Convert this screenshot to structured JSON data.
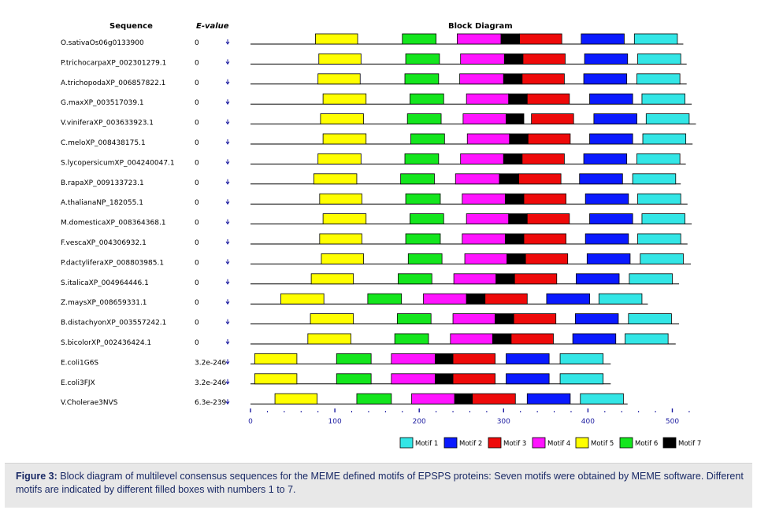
{
  "headers": {
    "sequence": "Sequence",
    "evalue": "E-value",
    "block_diagram": "Block Diagram"
  },
  "axis_ticks": [
    "0",
    "100",
    "200",
    "300",
    "400",
    "500"
  ],
  "motif_colors": {
    "1": "#33e6e6",
    "2": "#0a1aff",
    "3": "#ee0a0a",
    "4": "#ff14ff",
    "5": "#ffff00",
    "6": "#14e61e",
    "7": "#000000"
  },
  "legend": [
    {
      "motif": 1,
      "label": "Motif 1"
    },
    {
      "motif": 2,
      "label": "Motif 2"
    },
    {
      "motif": 3,
      "label": "Motif 3"
    },
    {
      "motif": 4,
      "label": "Motif 4"
    },
    {
      "motif": 5,
      "label": "Motif 5"
    },
    {
      "motif": 6,
      "label": "Motif 6"
    },
    {
      "motif": 7,
      "label": "Motif 7"
    }
  ],
  "rows": [
    {
      "name": "O.sativaOs06g0133900",
      "evalue": "0",
      "length": 513,
      "blocks": [
        [
          5,
          77,
          127
        ],
        [
          6,
          180,
          220
        ],
        [
          4,
          245,
          297
        ],
        [
          7,
          297,
          319
        ],
        [
          3,
          319,
          369
        ],
        [
          2,
          392,
          443
        ],
        [
          1,
          455,
          506
        ]
      ]
    },
    {
      "name": "P.trichocarpaXP_002301279.1",
      "evalue": "0",
      "length": 517,
      "blocks": [
        [
          5,
          81,
          131
        ],
        [
          6,
          184,
          224
        ],
        [
          4,
          249,
          301
        ],
        [
          7,
          301,
          323
        ],
        [
          3,
          323,
          373
        ],
        [
          2,
          396,
          447
        ],
        [
          1,
          459,
          510
        ]
      ]
    },
    {
      "name": "A.trichopodaXP_006857822.1",
      "evalue": "0",
      "length": 517,
      "blocks": [
        [
          5,
          80,
          130
        ],
        [
          6,
          183,
          223
        ],
        [
          4,
          248,
          300
        ],
        [
          7,
          300,
          322
        ],
        [
          3,
          322,
          372
        ],
        [
          2,
          395,
          446
        ],
        [
          1,
          458,
          509
        ]
      ]
    },
    {
      "name": "G.maxXP_003517039.1",
      "evalue": "0",
      "length": 523,
      "blocks": [
        [
          5,
          86,
          137
        ],
        [
          6,
          189,
          229
        ],
        [
          4,
          256,
          306
        ],
        [
          7,
          306,
          328
        ],
        [
          3,
          328,
          378
        ],
        [
          2,
          402,
          453
        ],
        [
          1,
          464,
          515
        ]
      ]
    },
    {
      "name": "V.viniferaXP_003633923.1",
      "evalue": "0",
      "length": 528,
      "blocks": [
        [
          5,
          83,
          134
        ],
        [
          6,
          186,
          226
        ],
        [
          4,
          252,
          303
        ],
        [
          7,
          303,
          324
        ],
        [
          3,
          333,
          383
        ],
        [
          2,
          407,
          458
        ],
        [
          1,
          469,
          520
        ]
      ]
    },
    {
      "name": "C.meloXP_008438175.1",
      "evalue": "0",
      "length": 524,
      "blocks": [
        [
          5,
          86,
          137
        ],
        [
          6,
          190,
          230
        ],
        [
          4,
          257,
          307
        ],
        [
          7,
          307,
          329
        ],
        [
          3,
          329,
          379
        ],
        [
          2,
          402,
          453
        ],
        [
          1,
          465,
          516
        ]
      ]
    },
    {
      "name": "S.lycopersicumXP_004240047.1",
      "evalue": "0",
      "length": 516,
      "blocks": [
        [
          5,
          80,
          131
        ],
        [
          6,
          183,
          223
        ],
        [
          4,
          249,
          300
        ],
        [
          7,
          300,
          322
        ],
        [
          3,
          322,
          372
        ],
        [
          2,
          395,
          446
        ],
        [
          1,
          458,
          509
        ]
      ]
    },
    {
      "name": "B.rapaXP_009133723.1",
      "evalue": "0",
      "length": 510,
      "blocks": [
        [
          5,
          75,
          126
        ],
        [
          6,
          178,
          218
        ],
        [
          4,
          243,
          295
        ],
        [
          7,
          295,
          318
        ],
        [
          3,
          318,
          368
        ],
        [
          2,
          390,
          441
        ],
        [
          1,
          453,
          504
        ]
      ]
    },
    {
      "name": "A.thalianaNP_182055.1",
      "evalue": "0",
      "length": 518,
      "blocks": [
        [
          5,
          82,
          132
        ],
        [
          6,
          184,
          225
        ],
        [
          4,
          251,
          302
        ],
        [
          7,
          302,
          324
        ],
        [
          3,
          324,
          374
        ],
        [
          2,
          397,
          448
        ],
        [
          1,
          459,
          510
        ]
      ]
    },
    {
      "name": "M.domesticaXP_008364368.1",
      "evalue": "0",
      "length": 523,
      "blocks": [
        [
          5,
          86,
          137
        ],
        [
          6,
          189,
          229
        ],
        [
          4,
          256,
          306
        ],
        [
          7,
          306,
          328
        ],
        [
          3,
          328,
          378
        ],
        [
          2,
          402,
          453
        ],
        [
          1,
          464,
          515
        ]
      ]
    },
    {
      "name": "F.vescaXP_004306932.1",
      "evalue": "0",
      "length": 518,
      "blocks": [
        [
          5,
          82,
          132
        ],
        [
          6,
          184,
          225
        ],
        [
          4,
          251,
          302
        ],
        [
          7,
          302,
          324
        ],
        [
          3,
          324,
          374
        ],
        [
          2,
          397,
          448
        ],
        [
          1,
          459,
          510
        ]
      ]
    },
    {
      "name": "P.dactyliferaXP_008803985.1",
      "evalue": "0",
      "length": 522,
      "blocks": [
        [
          5,
          84,
          134
        ],
        [
          6,
          187,
          227
        ],
        [
          4,
          254,
          304
        ],
        [
          7,
          304,
          326
        ],
        [
          3,
          326,
          376
        ],
        [
          2,
          399,
          450
        ],
        [
          1,
          462,
          513
        ]
      ]
    },
    {
      "name": "S.italicaXP_004964446.1",
      "evalue": "0",
      "length": 508,
      "blocks": [
        [
          5,
          72,
          122
        ],
        [
          6,
          175,
          215
        ],
        [
          4,
          241,
          291
        ],
        [
          7,
          291,
          313
        ],
        [
          3,
          313,
          363
        ],
        [
          2,
          386,
          437
        ],
        [
          1,
          449,
          500
        ]
      ]
    },
    {
      "name": "Z.maysXP_008659331.1",
      "evalue": "0",
      "length": 471,
      "blocks": [
        [
          5,
          36,
          87
        ],
        [
          6,
          139,
          179
        ],
        [
          4,
          205,
          256
        ],
        [
          7,
          256,
          278
        ],
        [
          3,
          278,
          328
        ],
        [
          2,
          351,
          402
        ],
        [
          1,
          413,
          464
        ]
      ]
    },
    {
      "name": "B.distachyonXP_003557242.1",
      "evalue": "0",
      "length": 508,
      "blocks": [
        [
          5,
          71,
          122
        ],
        [
          6,
          174,
          214
        ],
        [
          4,
          240,
          290
        ],
        [
          7,
          290,
          312
        ],
        [
          3,
          312,
          362
        ],
        [
          2,
          385,
          436
        ],
        [
          1,
          448,
          499
        ]
      ]
    },
    {
      "name": "S.bicolorXP_002436424.1",
      "evalue": "0",
      "length": 504,
      "blocks": [
        [
          5,
          68,
          119
        ],
        [
          6,
          171,
          211
        ],
        [
          4,
          237,
          287
        ],
        [
          7,
          287,
          309
        ],
        [
          3,
          309,
          359
        ],
        [
          2,
          382,
          433
        ],
        [
          1,
          444,
          495
        ]
      ]
    },
    {
      "name": "E.coli1G6S",
      "evalue": "3.2e-246",
      "length": 427,
      "blocks": [
        [
          5,
          5,
          55
        ],
        [
          6,
          102,
          143
        ],
        [
          4,
          167,
          219
        ],
        [
          7,
          219,
          240
        ],
        [
          3,
          240,
          290
        ],
        [
          2,
          303,
          354
        ],
        [
          1,
          367,
          418
        ]
      ]
    },
    {
      "name": "E.coli3FJX",
      "evalue": "3.2e-246",
      "length": 427,
      "blocks": [
        [
          5,
          5,
          55
        ],
        [
          6,
          102,
          143
        ],
        [
          4,
          167,
          219
        ],
        [
          7,
          219,
          240
        ],
        [
          3,
          240,
          290
        ],
        [
          2,
          303,
          354
        ],
        [
          1,
          367,
          418
        ]
      ]
    },
    {
      "name": "V.Cholerae3NVS",
      "evalue": "6.3e-239",
      "length": 447,
      "blocks": [
        [
          5,
          29,
          79
        ],
        [
          6,
          126,
          167
        ],
        [
          4,
          191,
          242
        ],
        [
          7,
          242,
          263
        ],
        [
          3,
          263,
          314
        ],
        [
          2,
          328,
          379
        ],
        [
          1,
          391,
          442
        ]
      ]
    }
  ],
  "caption": {
    "label": "Figure 3:",
    "text": " Block diagram of multilevel consensus sequences for the MEME defined motifs of EPSPS proteins: Seven motifs were obtained by MEME software. Different motifs are indicated by different filled boxes with numbers 1 to 7."
  }
}
